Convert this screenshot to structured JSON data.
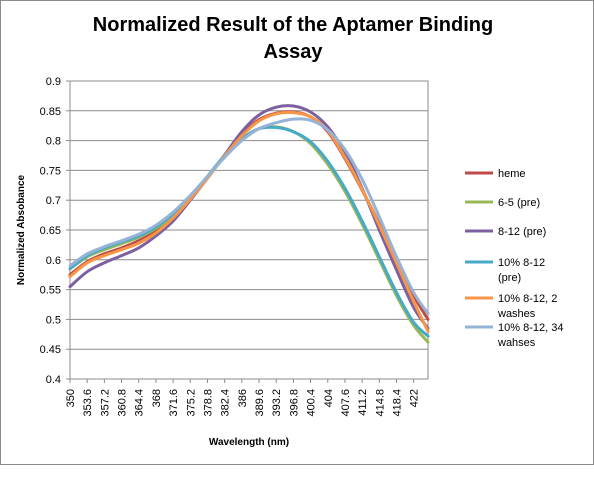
{
  "chart_data": {
    "type": "line",
    "title_lines": [
      "Normalized Result of the Aptamer Binding",
      "Assay"
    ],
    "xlabel": "Wavelength (nm)",
    "ylabel": "Normalized Absobance",
    "x_tick_labels": [
      "350",
      "353.6",
      "357.2",
      "360.8",
      "364.4",
      "368",
      "371.6",
      "375.2",
      "378.8",
      "382.4",
      "386",
      "389.6",
      "393.2",
      "396.8",
      "400.4",
      "404",
      "407.6",
      "411.2",
      "414.8",
      "418.4",
      "422"
    ],
    "y_ticks": [
      "0.9",
      "0.85",
      "0.8",
      "0.75",
      "0.7",
      "0.65",
      "0.6",
      "0.55",
      "0.5",
      "0.45",
      "0.4"
    ],
    "xlim": [
      350,
      425
    ],
    "ylim": [
      0.4,
      0.9
    ],
    "grid": "horizontal",
    "legend_position": "right",
    "x": [
      350,
      353.6,
      357.2,
      360.8,
      364.4,
      368,
      371.6,
      375.2,
      378.8,
      382.4,
      386,
      389.6,
      393.2,
      396.8,
      400.4,
      404,
      407.6,
      411.2,
      414.8,
      418.4,
      422,
      425
    ],
    "series": [
      {
        "name": "heme",
        "color": "#be4b48",
        "values": [
          0.575,
          0.597,
          0.61,
          0.62,
          0.632,
          0.648,
          0.672,
          0.703,
          0.738,
          0.775,
          0.81,
          0.835,
          0.846,
          0.848,
          0.84,
          0.815,
          0.77,
          0.717,
          0.66,
          0.6,
          0.54,
          0.5
        ]
      },
      {
        "name": "6-5 (pre)",
        "color": "#98b954",
        "values": [
          0.585,
          0.605,
          0.617,
          0.627,
          0.638,
          0.653,
          0.675,
          0.705,
          0.74,
          0.775,
          0.802,
          0.82,
          0.823,
          0.815,
          0.795,
          0.76,
          0.715,
          0.66,
          0.6,
          0.54,
          0.49,
          0.462
        ]
      },
      {
        "name": "8-12 (pre)",
        "color": "#7d60a0",
        "values": [
          0.555,
          0.58,
          0.595,
          0.607,
          0.62,
          0.64,
          0.665,
          0.7,
          0.737,
          0.776,
          0.815,
          0.843,
          0.856,
          0.858,
          0.848,
          0.823,
          0.78,
          0.72,
          0.65,
          0.583,
          0.52,
          0.485
        ]
      },
      {
        "name": "10% 8-12 (pre)",
        "color": "#46aac5",
        "values": [
          0.585,
          0.607,
          0.62,
          0.63,
          0.64,
          0.655,
          0.677,
          0.706,
          0.74,
          0.775,
          0.803,
          0.82,
          0.822,
          0.815,
          0.798,
          0.765,
          0.72,
          0.665,
          0.605,
          0.545,
          0.495,
          0.472
        ]
      },
      {
        "name": "10% 8-12, 2 washes",
        "color": "#f79646",
        "values": [
          0.572,
          0.595,
          0.607,
          0.617,
          0.628,
          0.645,
          0.67,
          0.702,
          0.737,
          0.774,
          0.808,
          0.833,
          0.845,
          0.847,
          0.84,
          0.817,
          0.772,
          0.718,
          0.658,
          0.595,
          0.53,
          0.48
        ]
      },
      {
        "name": "10% 8-12, 34 wahses",
        "color": "#95b3d7",
        "values": [
          0.59,
          0.61,
          0.622,
          0.632,
          0.643,
          0.658,
          0.68,
          0.708,
          0.74,
          0.772,
          0.8,
          0.82,
          0.83,
          0.836,
          0.834,
          0.818,
          0.785,
          0.735,
          0.672,
          0.605,
          0.545,
          0.51
        ]
      }
    ]
  },
  "legend": {
    "items": [
      {
        "lines": [
          "heme"
        ]
      },
      {
        "lines": [
          "6-5 (pre)"
        ]
      },
      {
        "lines": [
          "8-12 (pre)"
        ]
      },
      {
        "lines": [
          "10% 8-12",
          "(pre)"
        ]
      },
      {
        "lines": [
          "10% 8-12, 2",
          "washes"
        ]
      },
      {
        "lines": [
          "10% 8-12, 34",
          "wahses"
        ]
      }
    ]
  }
}
